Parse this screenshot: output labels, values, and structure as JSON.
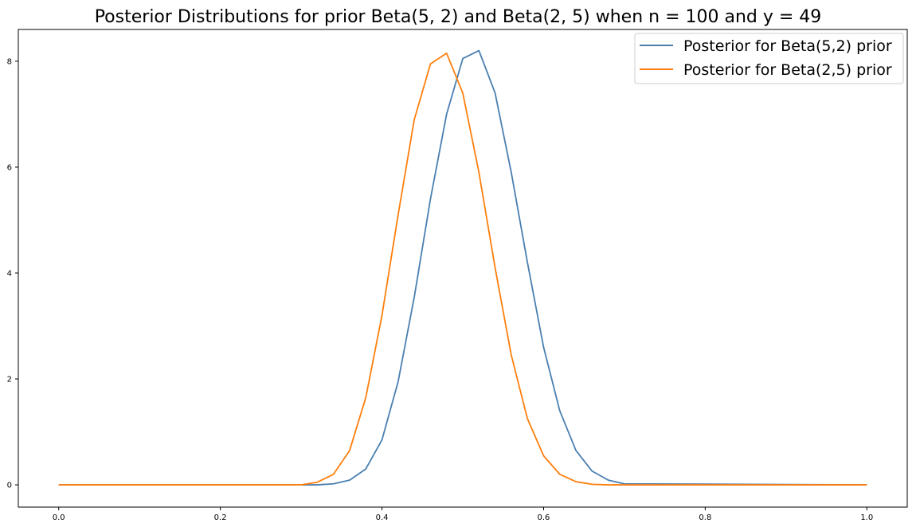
{
  "chart_data": {
    "type": "line",
    "title": "Posterior Distributions for prior Beta(5, 2) and Beta(2, 5) when n = 100 and y = 49",
    "xlabel": "",
    "ylabel": "",
    "xlim": [
      -0.05,
      1.05
    ],
    "ylim": [
      -0.42,
      8.6
    ],
    "x_ticks": [
      0.0,
      0.2,
      0.4,
      0.6,
      0.8,
      1.0
    ],
    "x_tick_labels": [
      "0.0",
      "0.2",
      "0.4",
      "0.6",
      "0.8",
      "1.0"
    ],
    "y_ticks": [
      0,
      2,
      4,
      6,
      8
    ],
    "y_tick_labels": [
      "0",
      "2",
      "4",
      "6",
      "8"
    ],
    "grid": false,
    "legend_position": "top-right",
    "x": [
      0.0,
      0.3,
      0.32,
      0.34,
      0.36,
      0.38,
      0.4,
      0.42,
      0.44,
      0.46,
      0.48,
      0.5,
      0.52,
      0.54,
      0.56,
      0.58,
      0.6,
      0.62,
      0.64,
      0.66,
      0.68,
      0.7,
      1.0
    ],
    "series": [
      {
        "name": "Posterior for Beta(5,2) prior",
        "color": "#4a7fb0",
        "values": [
          0.0,
          0.0,
          0.0,
          0.02,
          0.09,
          0.3,
          0.85,
          1.95,
          3.55,
          5.4,
          7.0,
          8.05,
          8.2,
          7.4,
          5.9,
          4.2,
          2.6,
          1.4,
          0.65,
          0.26,
          0.09,
          0.02,
          0.0
        ]
      },
      {
        "name": "Posterior for Beta(2,5) prior",
        "color": "#ff7f0e",
        "values": [
          0.0,
          0.0,
          0.05,
          0.2,
          0.65,
          1.65,
          3.2,
          5.1,
          6.9,
          7.95,
          8.15,
          7.4,
          5.9,
          4.1,
          2.45,
          1.25,
          0.55,
          0.2,
          0.06,
          0.01,
          0.0,
          0.0,
          0.0
        ]
      }
    ]
  }
}
